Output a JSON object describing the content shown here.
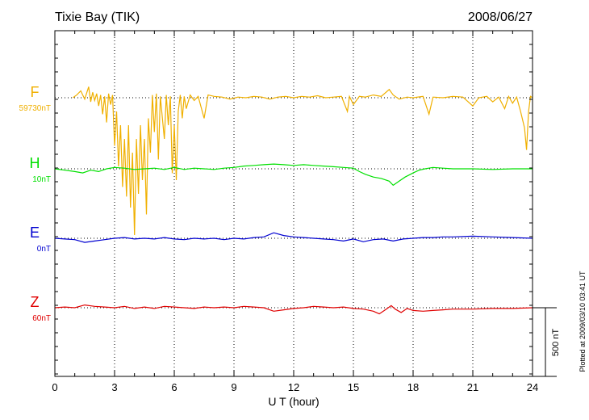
{
  "chart_data": {
    "type": "line",
    "title": "Tixie Bay (TIK)",
    "date": "2008/06/27",
    "xlabel": "U T (hour)",
    "xlim": [
      0,
      24
    ],
    "x_ticks": [
      "0",
      "3",
      "6",
      "9",
      "12",
      "15",
      "18",
      "21",
      "24"
    ],
    "scale_label": "500 nT",
    "plotted_note": "Plotted at 2009/03/10 03:41 UT",
    "grid": true,
    "series": [
      {
        "name": "F",
        "baseline_label": "59730nT",
        "color": "#f0b000",
        "points": [
          [
            0.9,
            0
          ],
          [
            1.1,
            20
          ],
          [
            1.3,
            50
          ],
          [
            1.5,
            -10
          ],
          [
            1.7,
            80
          ],
          [
            1.8,
            -30
          ],
          [
            1.9,
            40
          ],
          [
            2.0,
            -20
          ],
          [
            2.1,
            30
          ],
          [
            2.2,
            -60
          ],
          [
            2.3,
            20
          ],
          [
            2.4,
            -120
          ],
          [
            2.5,
            10
          ],
          [
            2.6,
            -180
          ],
          [
            2.7,
            30
          ],
          [
            2.8,
            -50
          ],
          [
            2.9,
            20
          ],
          [
            3.0,
            -350
          ],
          [
            3.1,
            -100
          ],
          [
            3.2,
            -500
          ],
          [
            3.3,
            -200
          ],
          [
            3.4,
            -650
          ],
          [
            3.5,
            -300
          ],
          [
            3.6,
            -720
          ],
          [
            3.7,
            -200
          ],
          [
            3.8,
            -800
          ],
          [
            3.9,
            -400
          ],
          [
            4.0,
            -1000
          ],
          [
            4.1,
            -300
          ],
          [
            4.2,
            -700
          ],
          [
            4.3,
            -200
          ],
          [
            4.4,
            -600
          ],
          [
            4.5,
            -300
          ],
          [
            4.6,
            -850
          ],
          [
            4.7,
            -150
          ],
          [
            4.8,
            -400
          ],
          [
            4.9,
            20
          ],
          [
            5.0,
            -250
          ],
          [
            5.1,
            30
          ],
          [
            5.2,
            -450
          ],
          [
            5.3,
            10
          ],
          [
            5.5,
            -300
          ],
          [
            5.6,
            20
          ],
          [
            5.7,
            -200
          ],
          [
            5.8,
            10
          ],
          [
            5.9,
            -550
          ],
          [
            6.0,
            -200
          ],
          [
            6.1,
            -600
          ],
          [
            6.2,
            -100
          ],
          [
            6.3,
            20
          ],
          [
            6.4,
            -150
          ],
          [
            6.5,
            10
          ],
          [
            6.6,
            -80
          ],
          [
            6.8,
            20
          ],
          [
            7.0,
            -20
          ],
          [
            7.2,
            10
          ],
          [
            7.5,
            -150
          ],
          [
            7.7,
            20
          ],
          [
            8.0,
            10
          ],
          [
            8.4,
            5
          ],
          [
            8.8,
            -10
          ],
          [
            9.2,
            5
          ],
          [
            9.6,
            0
          ],
          [
            10.0,
            10
          ],
          [
            10.4,
            5
          ],
          [
            10.8,
            -10
          ],
          [
            11.2,
            5
          ],
          [
            11.6,
            10
          ],
          [
            12.0,
            0
          ],
          [
            12.4,
            10
          ],
          [
            12.8,
            5
          ],
          [
            13.2,
            15
          ],
          [
            13.6,
            0
          ],
          [
            14.0,
            5
          ],
          [
            14.4,
            10
          ],
          [
            14.7,
            -100
          ],
          [
            14.8,
            10
          ],
          [
            15.0,
            -50
          ],
          [
            15.3,
            10
          ],
          [
            15.6,
            5
          ],
          [
            16.0,
            20
          ],
          [
            16.4,
            10
          ],
          [
            16.8,
            60
          ],
          [
            17.0,
            20
          ],
          [
            17.3,
            -10
          ],
          [
            17.7,
            5
          ],
          [
            18.0,
            0
          ],
          [
            18.5,
            10
          ],
          [
            18.8,
            -120
          ],
          [
            19.0,
            5
          ],
          [
            19.5,
            0
          ],
          [
            20.0,
            10
          ],
          [
            20.5,
            5
          ],
          [
            21.0,
            -60
          ],
          [
            21.3,
            0
          ],
          [
            21.7,
            10
          ],
          [
            22.0,
            -30
          ],
          [
            22.3,
            5
          ],
          [
            22.6,
            -80
          ],
          [
            22.8,
            10
          ],
          [
            23.0,
            -40
          ],
          [
            23.2,
            5
          ],
          [
            23.4,
            -100
          ],
          [
            23.6,
            -220
          ],
          [
            23.7,
            -380
          ],
          [
            23.8,
            -100
          ],
          [
            23.9,
            10
          ],
          [
            24.0,
            0
          ]
        ]
      },
      {
        "name": "H",
        "baseline_label": "10nT",
        "color": "#00e000",
        "points": [
          [
            0,
            0
          ],
          [
            0.5,
            -10
          ],
          [
            1.0,
            -20
          ],
          [
            1.4,
            -30
          ],
          [
            1.8,
            -10
          ],
          [
            2.2,
            -20
          ],
          [
            2.6,
            0
          ],
          [
            3.0,
            10
          ],
          [
            3.5,
            5
          ],
          [
            4.0,
            -5
          ],
          [
            4.5,
            0
          ],
          [
            5.0,
            5
          ],
          [
            5.5,
            -5
          ],
          [
            6.0,
            10
          ],
          [
            6.5,
            -5
          ],
          [
            7.0,
            5
          ],
          [
            7.5,
            0
          ],
          [
            8.0,
            -5
          ],
          [
            8.5,
            5
          ],
          [
            9.0,
            10
          ],
          [
            9.5,
            20
          ],
          [
            10.0,
            25
          ],
          [
            10.5,
            30
          ],
          [
            11.0,
            35
          ],
          [
            11.5,
            30
          ],
          [
            12.0,
            25
          ],
          [
            12.5,
            30
          ],
          [
            13.0,
            25
          ],
          [
            13.5,
            20
          ],
          [
            14.0,
            15
          ],
          [
            14.5,
            10
          ],
          [
            15.0,
            5
          ],
          [
            15.3,
            -20
          ],
          [
            15.6,
            -40
          ],
          [
            16.0,
            -60
          ],
          [
            16.4,
            -70
          ],
          [
            16.8,
            -90
          ],
          [
            17.0,
            -120
          ],
          [
            17.3,
            -90
          ],
          [
            17.6,
            -60
          ],
          [
            18.0,
            -30
          ],
          [
            18.3,
            -10
          ],
          [
            18.6,
            0
          ],
          [
            19.0,
            10
          ],
          [
            19.5,
            5
          ],
          [
            20.0,
            0
          ],
          [
            21.0,
            0
          ],
          [
            22.0,
            -5
          ],
          [
            23.0,
            0
          ],
          [
            24.0,
            0
          ]
        ]
      },
      {
        "name": "E",
        "baseline_label": "0nT",
        "color": "#0000d0",
        "points": [
          [
            0,
            0
          ],
          [
            0.5,
            -5
          ],
          [
            1.0,
            -10
          ],
          [
            1.5,
            -30
          ],
          [
            2.0,
            -20
          ],
          [
            2.5,
            -10
          ],
          [
            3.0,
            0
          ],
          [
            3.5,
            5
          ],
          [
            4.0,
            -5
          ],
          [
            4.5,
            0
          ],
          [
            5.0,
            -5
          ],
          [
            5.5,
            5
          ],
          [
            6.0,
            -5
          ],
          [
            6.5,
            -10
          ],
          [
            7.0,
            0
          ],
          [
            7.5,
            -5
          ],
          [
            8.0,
            0
          ],
          [
            8.5,
            -10
          ],
          [
            9.0,
            0
          ],
          [
            9.5,
            -5
          ],
          [
            10.0,
            5
          ],
          [
            10.5,
            10
          ],
          [
            11.0,
            40
          ],
          [
            11.5,
            20
          ],
          [
            12.0,
            10
          ],
          [
            12.5,
            5
          ],
          [
            13.0,
            0
          ],
          [
            13.5,
            -5
          ],
          [
            14.0,
            -10
          ],
          [
            14.5,
            -20
          ],
          [
            15.0,
            -5
          ],
          [
            15.5,
            -25
          ],
          [
            16.0,
            -10
          ],
          [
            16.5,
            -5
          ],
          [
            17.0,
            -20
          ],
          [
            17.5,
            -5
          ],
          [
            18.0,
            0
          ],
          [
            18.5,
            5
          ],
          [
            19.0,
            5
          ],
          [
            19.5,
            10
          ],
          [
            20.0,
            10
          ],
          [
            21.0,
            15
          ],
          [
            22.0,
            10
          ],
          [
            23.0,
            5
          ],
          [
            24.0,
            0
          ]
        ]
      },
      {
        "name": "Z",
        "baseline_label": "60nT",
        "color": "#e00000",
        "points": [
          [
            0,
            0
          ],
          [
            0.5,
            5
          ],
          [
            1.0,
            0
          ],
          [
            1.5,
            20
          ],
          [
            2.0,
            10
          ],
          [
            2.5,
            5
          ],
          [
            3.0,
            0
          ],
          [
            3.5,
            10
          ],
          [
            4.0,
            -5
          ],
          [
            4.5,
            5
          ],
          [
            5.0,
            -5
          ],
          [
            5.5,
            10
          ],
          [
            6.0,
            5
          ],
          [
            6.5,
            0
          ],
          [
            7.0,
            -5
          ],
          [
            7.5,
            5
          ],
          [
            8.0,
            0
          ],
          [
            8.5,
            5
          ],
          [
            9.0,
            0
          ],
          [
            9.5,
            10
          ],
          [
            10.0,
            5
          ],
          [
            10.5,
            0
          ],
          [
            11.0,
            -25
          ],
          [
            11.5,
            -15
          ],
          [
            12.0,
            -5
          ],
          [
            12.5,
            0
          ],
          [
            13.0,
            10
          ],
          [
            13.5,
            5
          ],
          [
            14.0,
            0
          ],
          [
            14.5,
            5
          ],
          [
            15.0,
            -5
          ],
          [
            15.5,
            -10
          ],
          [
            16.0,
            -25
          ],
          [
            16.3,
            -45
          ],
          [
            16.6,
            -15
          ],
          [
            16.9,
            15
          ],
          [
            17.1,
            -10
          ],
          [
            17.4,
            -35
          ],
          [
            17.7,
            -5
          ],
          [
            18.0,
            -20
          ],
          [
            18.5,
            -25
          ],
          [
            19.0,
            -20
          ],
          [
            19.5,
            -15
          ],
          [
            20.0,
            -10
          ],
          [
            21.0,
            -10
          ],
          [
            22.0,
            -5
          ],
          [
            23.0,
            -5
          ],
          [
            24.0,
            0
          ]
        ]
      }
    ]
  }
}
